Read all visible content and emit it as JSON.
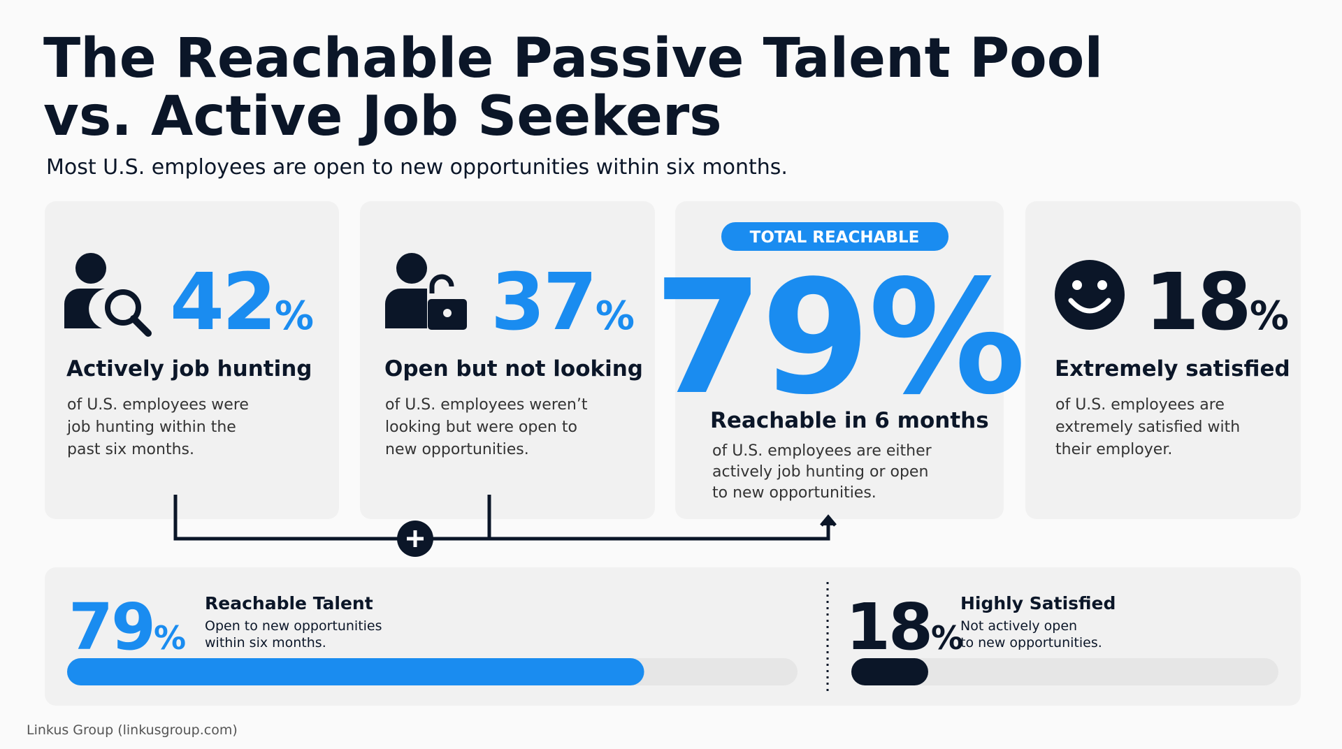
{
  "title_lines": [
    "The Reachable Passive Talent Pool",
    "vs. Active Job Seekers"
  ],
  "subtitle": "Most U.S. employees are open to new opportunities within six months.",
  "cards": [
    {
      "value": 42,
      "unit": "%",
      "label": "Actively job hunting",
      "description": [
        "of U.S. employees were",
        "job hunting within the",
        "past six months."
      ]
    },
    {
      "value": 37,
      "unit": "%",
      "label": "Open but not looking",
      "description": [
        "of U.S. employees weren’t",
        "looking but were open to",
        "new opportunities."
      ]
    },
    {
      "badge": "TOTAL REACHABLE",
      "value": 79,
      "unit": "%",
      "label": "Reachable in 6 months",
      "description": [
        "of U.S. employees are either",
        "actively job hunting or open",
        "to new opportunities."
      ]
    },
    {
      "value": 18,
      "unit": "%",
      "label": "Extremely satisfied",
      "description": [
        "of U.S. employees are",
        "extremely satisfied with",
        "their employer."
      ]
    }
  ],
  "summary": {
    "xlim": [
      0,
      100
    ],
    "items": [
      {
        "value": 79,
        "unit": "%",
        "label": "Reachable Talent",
        "description": [
          "Open to new opportunities",
          "within six months."
        ],
        "color": "#1a8cf0"
      },
      {
        "value": 18,
        "unit": "%",
        "label": "Highly Satisfied",
        "description": [
          "Not actively open",
          "to new opportunities."
        ],
        "color": "#0b1628"
      }
    ]
  },
  "source": "Linkus Group (linkusgroup.com)"
}
